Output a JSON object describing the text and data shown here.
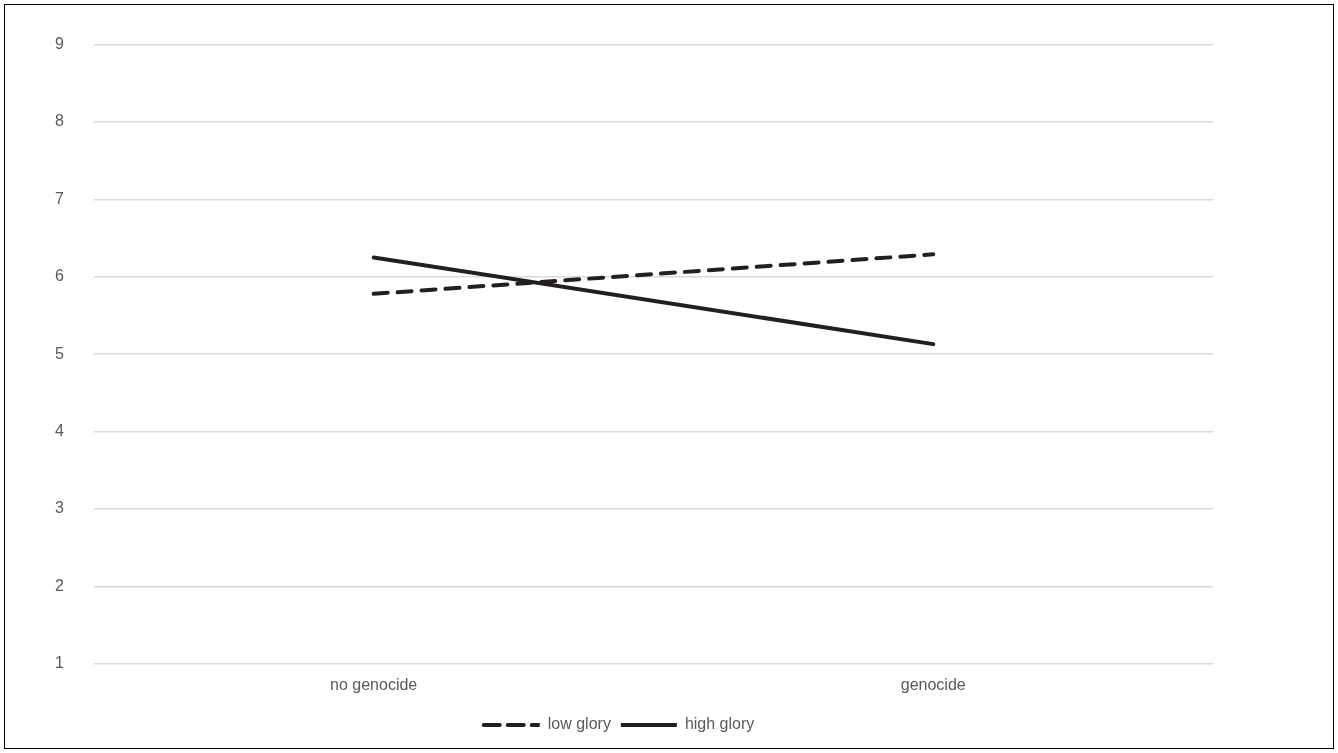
{
  "chart_data": {
    "type": "line",
    "categories": [
      "no genocide",
      "genocide"
    ],
    "series": [
      {
        "name": "low glory",
        "color": "#231f20",
        "values": [
          5.78,
          6.29
        ],
        "line_style": "dashed"
      },
      {
        "name": "high glory",
        "color": "#231f20",
        "values": [
          6.25,
          5.13
        ],
        "line_style": "solid"
      }
    ],
    "ylim": [
      1,
      9
    ],
    "yticks": [
      1,
      2,
      3,
      4,
      5,
      6,
      7,
      8,
      9
    ],
    "grid": "y",
    "legend": "bottom",
    "marker": "none"
  }
}
